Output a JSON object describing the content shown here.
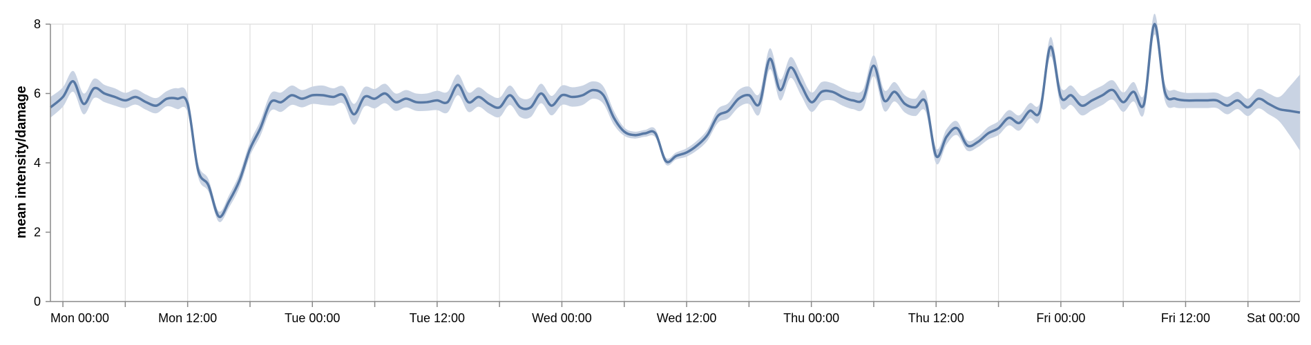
{
  "chart_data": {
    "type": "line",
    "title": "",
    "xlabel": "",
    "ylabel": "mean intensity/damage",
    "ylim": [
      0,
      8
    ],
    "yticks": [
      "0",
      "2",
      "4",
      "6",
      "8"
    ],
    "xticks": [
      "Mon 00:00",
      "Mon 12:00",
      "Tue 00:00",
      "Tue 12:00",
      "Wed 00:00",
      "Wed 12:00",
      "Thu 00:00",
      "Thu 12:00",
      "Fri 00:00",
      "Fri 12:00",
      "Sat 00:00"
    ],
    "x_units": "hours since Mon 00:00",
    "xlim": [
      -1.2,
      119
    ],
    "grid": "vertical",
    "series": [
      {
        "color": "#5778a4",
        "band_color": "#c9d3e3",
        "x": [
          -1.2,
          0,
          1,
          2,
          3,
          4,
          5,
          6,
          7,
          8,
          9,
          10,
          11,
          12,
          13,
          14,
          15,
          16,
          17,
          18,
          19,
          20,
          21,
          22,
          23,
          24,
          25,
          26,
          27,
          28,
          29,
          30,
          31,
          32,
          33,
          34,
          35,
          36,
          37,
          38,
          39,
          40,
          41,
          42,
          43,
          44,
          45,
          46,
          47,
          48,
          49,
          50,
          51,
          52,
          53,
          54,
          55,
          56,
          57,
          58,
          59,
          60,
          61,
          62,
          63,
          64,
          65,
          66,
          67,
          68,
          69,
          70,
          71,
          72,
          73,
          74,
          75,
          76,
          77,
          78,
          79,
          80,
          81,
          82,
          83,
          84,
          85,
          86,
          87,
          88,
          89,
          90,
          91,
          92,
          93,
          94,
          95,
          96,
          97,
          98,
          99,
          100,
          101,
          102,
          103,
          104,
          105,
          106,
          107,
          108,
          109,
          110,
          111,
          112,
          113,
          114,
          115,
          116,
          117,
          118,
          119
        ],
        "y": [
          5.6,
          5.9,
          6.35,
          5.7,
          6.15,
          6.0,
          5.9,
          5.8,
          5.9,
          5.75,
          5.65,
          5.85,
          5.85,
          5.7,
          3.8,
          3.35,
          2.45,
          2.9,
          3.5,
          4.4,
          5.0,
          5.75,
          5.75,
          5.95,
          5.85,
          5.95,
          5.95,
          5.9,
          5.95,
          5.4,
          5.9,
          5.85,
          6.0,
          5.75,
          5.85,
          5.75,
          5.75,
          5.8,
          5.75,
          6.25,
          5.75,
          5.9,
          5.7,
          5.6,
          5.95,
          5.6,
          5.6,
          6.0,
          5.65,
          5.95,
          5.9,
          5.95,
          6.1,
          5.95,
          5.3,
          4.9,
          4.8,
          4.85,
          4.85,
          4.05,
          4.2,
          4.3,
          4.5,
          4.8,
          5.35,
          5.5,
          5.85,
          5.95,
          5.7,
          7.0,
          6.1,
          6.75,
          6.25,
          5.75,
          6.05,
          6.05,
          5.9,
          5.8,
          5.85,
          6.8,
          5.8,
          6.05,
          5.7,
          5.6,
          5.75,
          4.2,
          4.75,
          5.0,
          4.5,
          4.6,
          4.85,
          5.0,
          5.3,
          5.15,
          5.5,
          5.5,
          7.35,
          5.9,
          5.95,
          5.65,
          5.8,
          5.95,
          6.1,
          5.75,
          6.05,
          5.7,
          8.0,
          6.05,
          5.85,
          5.8,
          5.8,
          5.8,
          5.8,
          5.65,
          5.8,
          5.6,
          5.85,
          5.7,
          5.55,
          5.5,
          5.45
        ],
        "ci_half_width": [
          0.3,
          0.28,
          0.3,
          0.3,
          0.28,
          0.25,
          0.25,
          0.22,
          0.22,
          0.22,
          0.22,
          0.22,
          0.3,
          0.25,
          0.2,
          0.18,
          0.15,
          0.18,
          0.2,
          0.2,
          0.22,
          0.25,
          0.28,
          0.28,
          0.25,
          0.25,
          0.28,
          0.25,
          0.25,
          0.3,
          0.28,
          0.28,
          0.28,
          0.25,
          0.25,
          0.25,
          0.25,
          0.28,
          0.3,
          0.3,
          0.28,
          0.28,
          0.28,
          0.28,
          0.28,
          0.28,
          0.28,
          0.28,
          0.28,
          0.28,
          0.28,
          0.28,
          0.25,
          0.25,
          0.2,
          0.12,
          0.1,
          0.1,
          0.12,
          0.1,
          0.1,
          0.12,
          0.14,
          0.16,
          0.2,
          0.22,
          0.25,
          0.25,
          0.3,
          0.3,
          0.3,
          0.3,
          0.3,
          0.28,
          0.28,
          0.25,
          0.25,
          0.25,
          0.28,
          0.3,
          0.3,
          0.28,
          0.25,
          0.25,
          0.28,
          0.22,
          0.22,
          0.2,
          0.15,
          0.15,
          0.18,
          0.2,
          0.22,
          0.22,
          0.22,
          0.25,
          0.28,
          0.28,
          0.28,
          0.28,
          0.28,
          0.28,
          0.28,
          0.28,
          0.28,
          0.28,
          0.3,
          0.25,
          0.25,
          0.22,
          0.22,
          0.22,
          0.22,
          0.25,
          0.25,
          0.25,
          0.28,
          0.3,
          0.35,
          0.7,
          1.1
        ]
      }
    ]
  }
}
